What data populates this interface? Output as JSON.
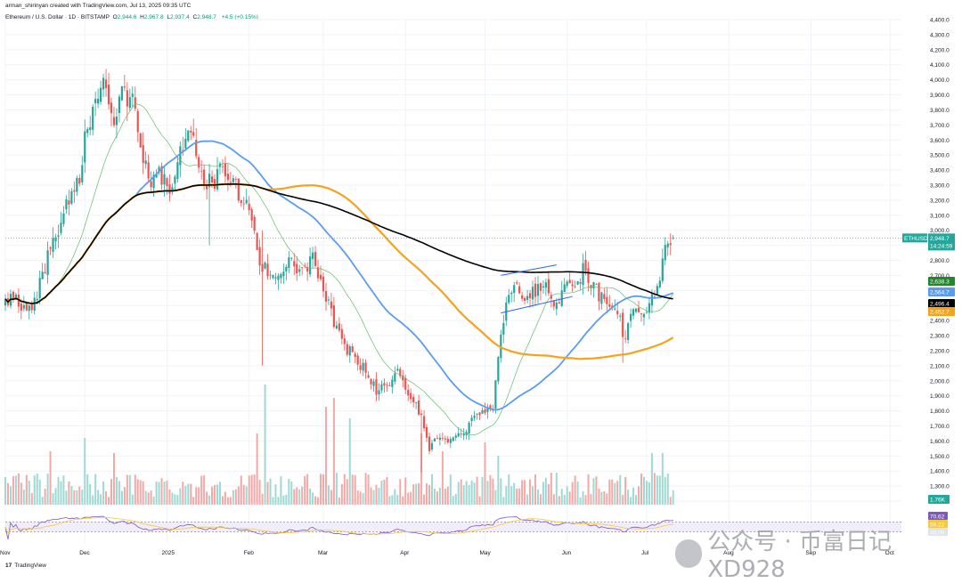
{
  "header": {
    "creator": "arman_shirinyan created with TradingView.com, Jul 13, 2025 09:35 UTC",
    "symbol": "Ethereum / U.S. Dollar · 1D · BITSTAMP",
    "open_label": "O",
    "open": "2,944.6",
    "high_label": "H",
    "high": "2,967.8",
    "low_label": "L",
    "low": "2,937.4",
    "close_label": "C",
    "close": "2,948.7",
    "change": "+4.5 (+0.15%)"
  },
  "footer": {
    "logo": "17",
    "brand": "TradingView"
  },
  "watermark": {
    "text": "公众号 · 币富日记 XD928"
  },
  "colors": {
    "up": "#26a69a",
    "down": "#ef5350",
    "ma20": "#66bb6a",
    "ma50": "#5b9cf3",
    "ma100": "#f7a21b",
    "ma200": "#000000",
    "rsi": "#7e57c2",
    "rsi_ma": "#f5c842"
  },
  "chart_data": {
    "type": "candlestick",
    "symbol": "ETHUSD",
    "y_axis": {
      "min": 1200,
      "max": 4400,
      "step": 100,
      "tick_labels": [
        "1,200.0",
        "1,300.0",
        "1,400.0",
        "1,500.0",
        "1,600.0",
        "1,700.0",
        "1,800.0",
        "1,900.0",
        "2,000.0",
        "2,100.0",
        "2,200.0",
        "2,300.0",
        "2,400.0",
        "2,500.0",
        "2,600.0",
        "2,700.0",
        "2,800.0",
        "2,900.0",
        "3,000.0",
        "3,100.0",
        "3,200.0",
        "3,300.0",
        "3,400.0",
        "3,500.0",
        "3,600.0",
        "3,700.0",
        "3,800.0",
        "3,900.0",
        "4,000.0",
        "4,100.0",
        "4,200.0",
        "4,300.0",
        "4,400.0"
      ]
    },
    "x_axis": {
      "labels": [
        "Nov",
        "Dec",
        "2025",
        "Feb",
        "Mar",
        "Apr",
        "May",
        "Jun",
        "Jul",
        "Aug",
        "Sep",
        "Oct"
      ],
      "label_bar_index": [
        0,
        30,
        61,
        92,
        120,
        151,
        181,
        212,
        242,
        273,
        304,
        334
      ]
    },
    "last_price": {
      "label": "ETHUSD",
      "value": "2,948.7",
      "countdown": "14:24:59"
    },
    "ma_labels": [
      {
        "value": "2,638.3",
        "color": "#22862b"
      },
      {
        "value": "2,564.7",
        "color": "#5b9cf3"
      },
      {
        "value": "2,496.4",
        "color": "#000000"
      },
      {
        "value": "2,452.7",
        "color": "#f7a21b"
      }
    ],
    "volume_label": "1.76K",
    "rsi": {
      "labels": [
        "70.62",
        "59.22",
        "40.00"
      ],
      "upper": 70,
      "lower": 30
    },
    "anchors": [
      [
        0,
        2500
      ],
      [
        4,
        2560
      ],
      [
        8,
        2440
      ],
      [
        12,
        2580
      ],
      [
        16,
        2820
      ],
      [
        20,
        3000
      ],
      [
        24,
        3200
      ],
      [
        28,
        3350
      ],
      [
        30,
        3600
      ],
      [
        34,
        3800
      ],
      [
        37,
        3950
      ],
      [
        41,
        3700
      ],
      [
        44,
        3900
      ],
      [
        48,
        3850
      ],
      [
        52,
        3500
      ],
      [
        55,
        3350
      ],
      [
        58,
        3400
      ],
      [
        62,
        3250
      ],
      [
        66,
        3500
      ],
      [
        70,
        3650
      ],
      [
        74,
        3350
      ],
      [
        78,
        3300
      ],
      [
        82,
        3450
      ],
      [
        86,
        3300
      ],
      [
        90,
        3200
      ],
      [
        94,
        3050
      ],
      [
        96,
        2800
      ],
      [
        100,
        2690
      ],
      [
        104,
        2760
      ],
      [
        108,
        2780
      ],
      [
        112,
        2720
      ],
      [
        116,
        2840
      ],
      [
        120,
        2620
      ],
      [
        124,
        2400
      ],
      [
        128,
        2230
      ],
      [
        132,
        2150
      ],
      [
        136,
        2060
      ],
      [
        140,
        1930
      ],
      [
        144,
        1980
      ],
      [
        148,
        2080
      ],
      [
        152,
        1880
      ],
      [
        156,
        1800
      ],
      [
        160,
        1560
      ],
      [
        164,
        1620
      ],
      [
        168,
        1590
      ],
      [
        172,
        1630
      ],
      [
        176,
        1750
      ],
      [
        180,
        1800
      ],
      [
        184,
        1790
      ],
      [
        186,
        2200
      ],
      [
        189,
        2540
      ],
      [
        192,
        2620
      ],
      [
        196,
        2550
      ],
      [
        200,
        2600
      ],
      [
        204,
        2620
      ],
      [
        208,
        2500
      ],
      [
        212,
        2640
      ],
      [
        215,
        2590
      ],
      [
        218,
        2750
      ],
      [
        220,
        2680
      ],
      [
        224,
        2560
      ],
      [
        228,
        2520
      ],
      [
        230,
        2470
      ],
      [
        232,
        2420
      ],
      [
        234,
        2250
      ],
      [
        236,
        2450
      ],
      [
        240,
        2430
      ],
      [
        243,
        2530
      ],
      [
        246,
        2590
      ],
      [
        248,
        2800
      ],
      [
        250,
        2960
      ],
      [
        252,
        2948
      ]
    ],
    "notes": "Daily ETH/USD candles (~253 days) reconstructed from the figure; overlays are simple moving averages (20/50/100/200) computed from closes; volume and RSI panes below."
  }
}
